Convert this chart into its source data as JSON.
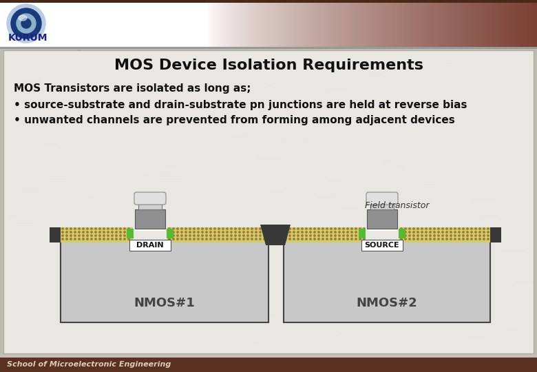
{
  "title": "MOS Device Isolation Requirements",
  "title_fontsize": 16,
  "subtitle_line1": "MOS Transistors are isolated as long as;",
  "bullet1": "• source-substrate and drain-substrate pn junctions are held at reverse bias",
  "bullet2": "• unwanted channels are prevented from forming among adjacent devices",
  "text_color": "#000000",
  "nmos1_label": "NMOS#1",
  "nmos2_label": "NMOS#2",
  "drain_label": "DRAIN",
  "source_label": "SOURCE",
  "field_transistor_label": "Field transistor",
  "footer_text": "School of Microelectronic Engineering",
  "logo_text": "KURUM",
  "header_bg": "#f0f0f0",
  "header_brown": "#7a4030",
  "content_panel_bg": "#e8e6e2",
  "substrate_color": "#c8c8c8",
  "oxide_color": "#d4c870",
  "oxide_dot_color": "#9a8830",
  "gate_poly_color": "#909090",
  "gate_dark_color": "#505050",
  "metal_color": "#c0c0c0",
  "metal_light": "#e0e0e0",
  "dark_sep_color": "#404040",
  "green_contact": "#66cc44",
  "footer_bg": "#5a3020",
  "footer_text_color": "#dddddd",
  "separator_line_color": "#888888"
}
